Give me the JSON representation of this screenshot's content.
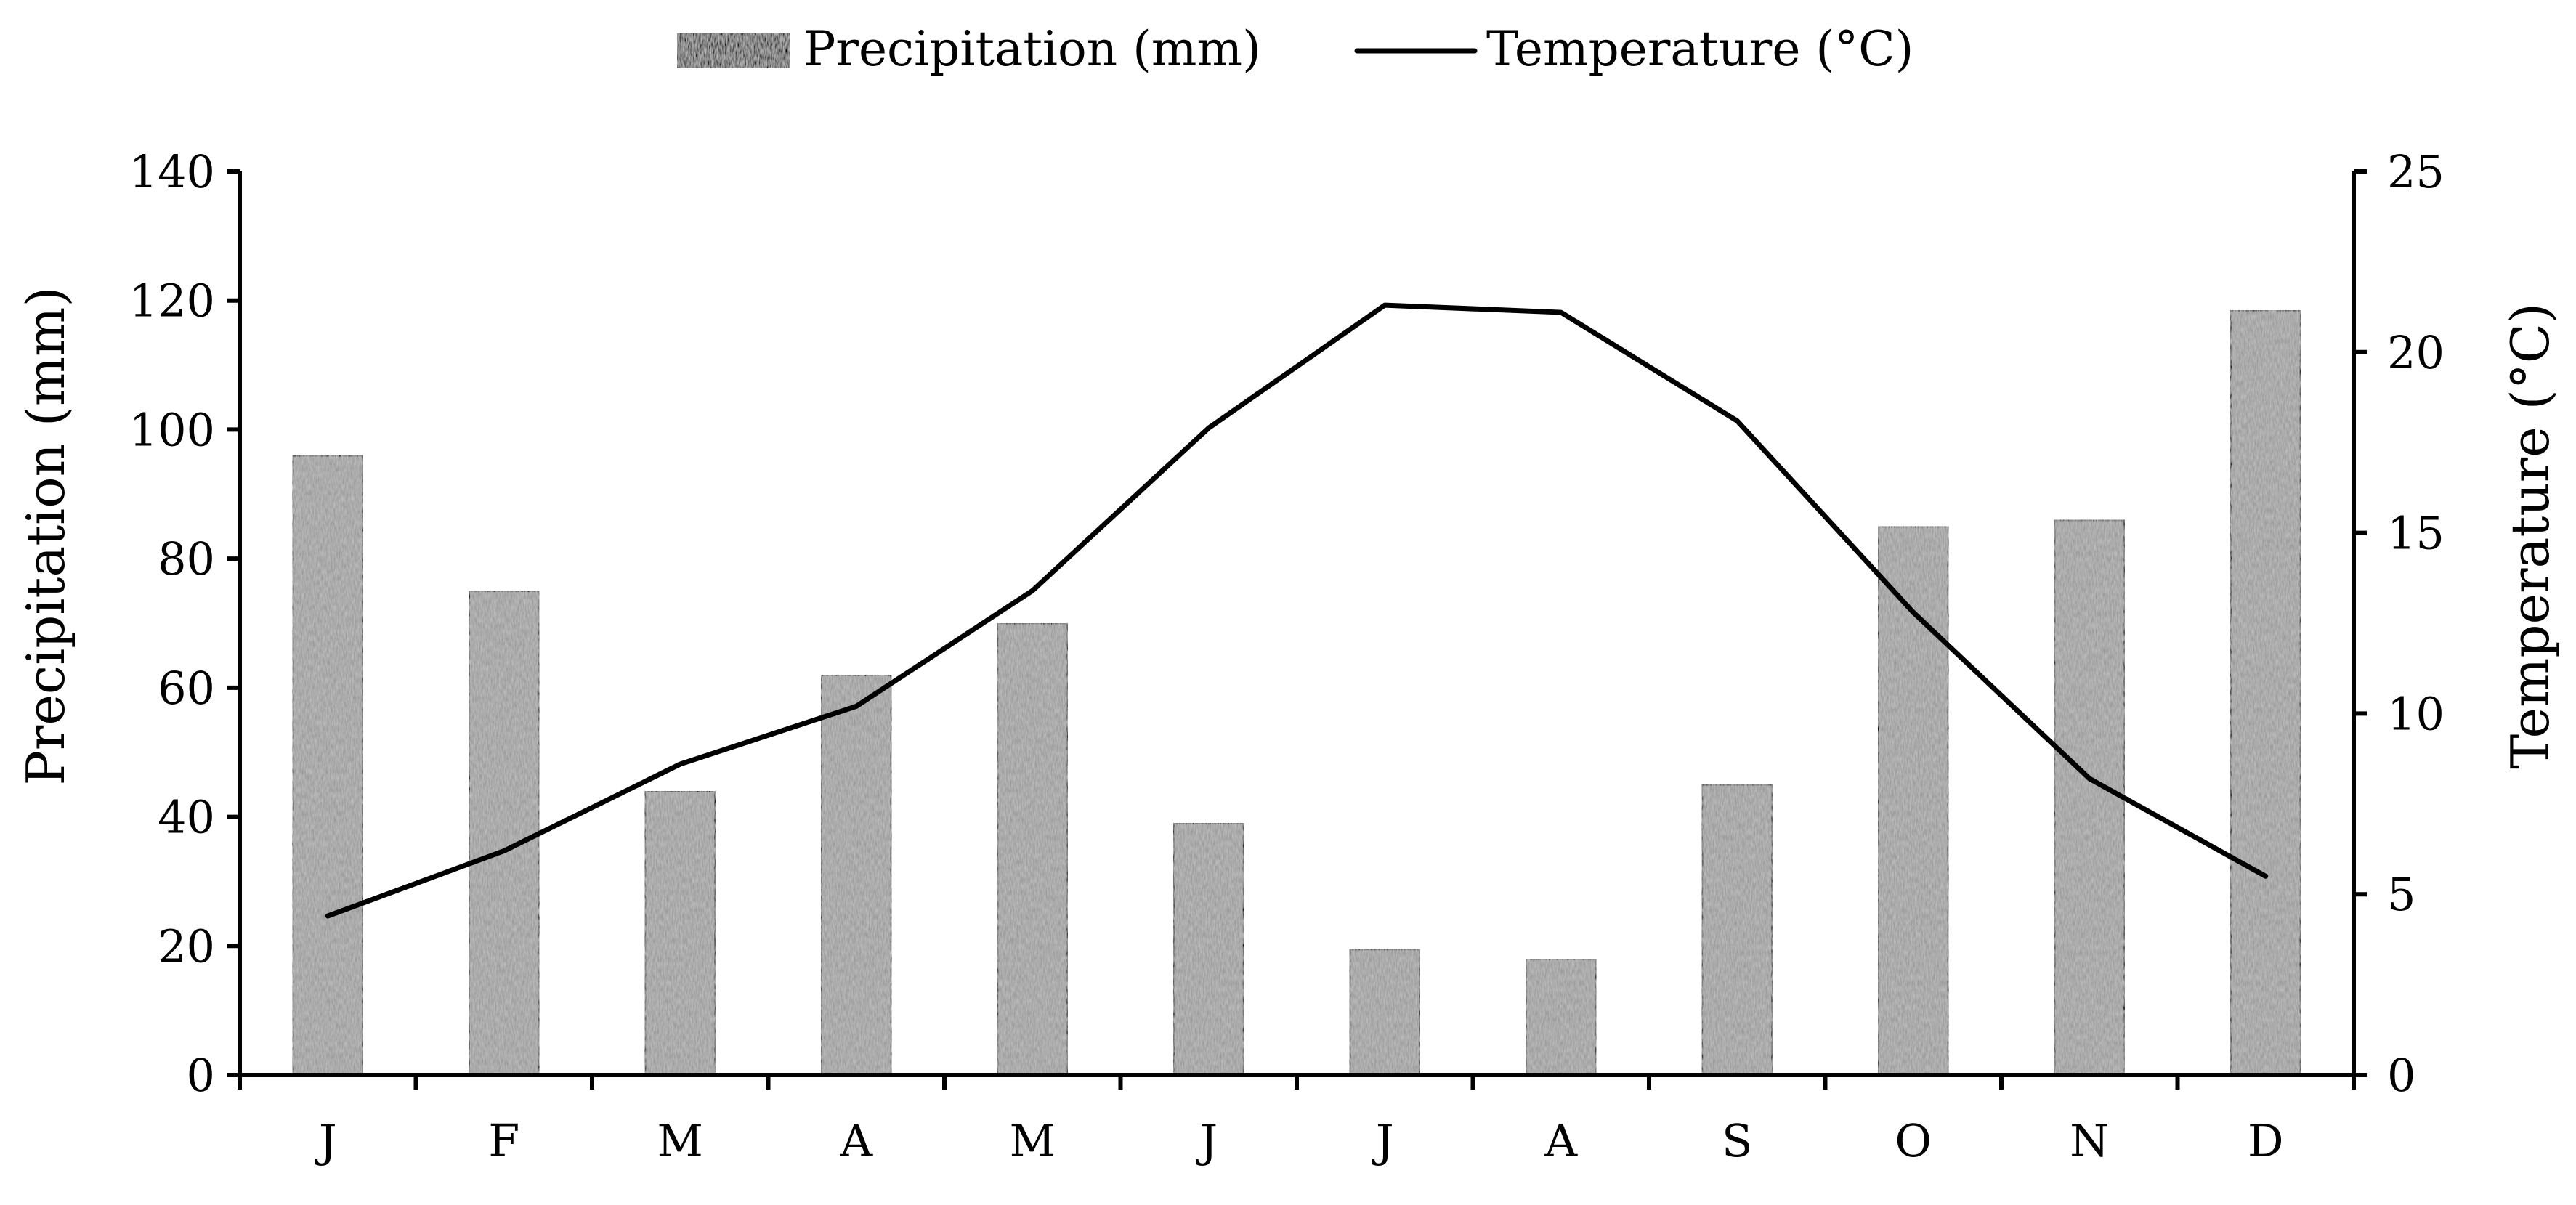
{
  "chart_data": {
    "type": "bar",
    "categories": [
      "J",
      "F",
      "M",
      "A",
      "M",
      "J",
      "J",
      "A",
      "S",
      "O",
      "N",
      "D"
    ],
    "series": [
      {
        "name": "Precipitation (mm)",
        "type": "bar",
        "axis": "left",
        "values": [
          96,
          75,
          44,
          62,
          70,
          39,
          19.5,
          18,
          45,
          85,
          86,
          118.5
        ]
      },
      {
        "name": "Temperature (°C)",
        "type": "line",
        "axis": "right",
        "values": [
          4.4,
          6.2,
          8.6,
          10.2,
          13.4,
          17.9,
          21.3,
          21.1,
          18.1,
          12.8,
          8.2,
          5.5
        ]
      }
    ],
    "ylabel": "Precipitation (mm)",
    "y2label": "Temperature (°C)",
    "xlabel": "",
    "ylim": [
      0,
      140
    ],
    "y2lim": [
      0,
      25
    ],
    "yticks": [
      0,
      20,
      40,
      60,
      80,
      100,
      120,
      140
    ],
    "y2ticks": [
      0,
      5,
      10,
      15,
      20,
      25
    ],
    "legend_position": "top-center",
    "grid": false
  },
  "colors": {
    "bar_fill": "#9a9a9a",
    "line": "#000000"
  }
}
